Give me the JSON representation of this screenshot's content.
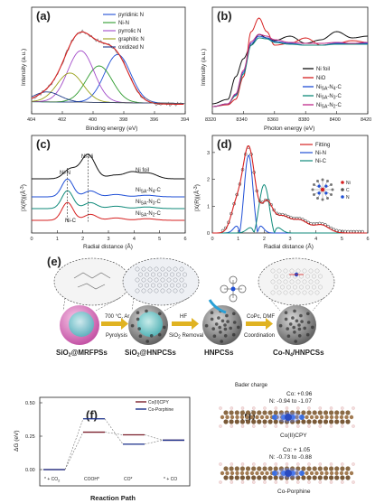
{
  "panel_a": {
    "label": "(a)",
    "ylabel": "Intensity (a.u.)",
    "xlabel": "Binding energy (eV)",
    "xticks": [
      "404",
      "402",
      "400",
      "398",
      "396",
      "394"
    ],
    "legend": [
      {
        "name": "pyridinic N",
        "color": "#1f4fd6"
      },
      {
        "name": "Ni-N",
        "color": "#2e9b2e"
      },
      {
        "name": "pyrrolic N",
        "color": "#a34bc9"
      },
      {
        "name": "graphitic N",
        "color": "#9aa21a"
      },
      {
        "name": "oxidized N",
        "color": "#1e3a8a"
      }
    ],
    "raw_color": "#777777",
    "fit_color": "#d62020"
  },
  "panel_b": {
    "label": "(b)",
    "ylabel": "Intensity (a.u.)",
    "xlabel": "Photon energy (eV)",
    "xticks": [
      "8320",
      "8340",
      "8360",
      "8380",
      "8400",
      "8420"
    ],
    "legend": [
      {
        "name": "Ni foil",
        "color": "#111111"
      },
      {
        "name": "NiO",
        "color": "#d62020"
      },
      {
        "name": "Ni",
        "sub": "SA",
        "tail": "-N",
        "sub2": "4",
        "end": "-C",
        "color": "#1f4fd6"
      },
      {
        "name": "Ni",
        "sub": "SA",
        "tail": "-N",
        "sub2": "3",
        "end": "-C",
        "color": "#0f8a7a"
      },
      {
        "name": "Ni",
        "sub": "SA",
        "tail": "-N",
        "sub2": "2",
        "end": "-C",
        "color": "#c02a8a"
      }
    ]
  },
  "panel_c": {
    "label": "(c)",
    "ylabel": "|X(R)|(Å",
    "ylabel_sup": "-3",
    "ylabel_end": ")",
    "xlabel": "Radial distance (Å)",
    "xticks": [
      "0",
      "1",
      "2",
      "3",
      "4",
      "5",
      "6"
    ],
    "annotations": {
      "ni_ni": "Ni-Ni",
      "ni_n": "Ni-N",
      "ni_c": "Ni-C",
      "ni_foil": "Ni foil"
    },
    "curves": [
      {
        "name": "Ni",
        "sub": "SA",
        "tail": "-N",
        "sub2": "4",
        "end": "-C"
      },
      {
        "name": "Ni",
        "sub": "SA",
        "tail": "-N",
        "sub2": "3",
        "end": "-C"
      },
      {
        "name": "Ni",
        "sub": "SA",
        "tail": "-N",
        "sub2": "2",
        "end": "-C"
      }
    ]
  },
  "panel_d": {
    "label": "(d)",
    "ylabel": "|X(R)|(Å",
    "ylabel_sup": "-3",
    "ylabel_end": ")",
    "xlabel": "Radial distance (Å)",
    "xticks": [
      "0",
      "1",
      "2",
      "3",
      "4",
      "5",
      "6"
    ],
    "yticks": [
      "0",
      "1",
      "2",
      "3"
    ],
    "legend": [
      {
        "name": "Fitting",
        "color": "#d62020"
      },
      {
        "name": "Ni-N",
        "color": "#1f4fd6"
      },
      {
        "name": "Ni-C",
        "color": "#0f8a7a"
      }
    ],
    "atoms": [
      {
        "name": "Ni",
        "color": "#d62020"
      },
      {
        "name": "C",
        "color": "#555555"
      },
      {
        "name": "N",
        "color": "#1f4fd6"
      }
    ]
  },
  "panel_e": {
    "label": "(e)",
    "step1": {
      "line1": "700 °C, Ar",
      "line2": "Pyrolysis"
    },
    "step2": {
      "line1": "HF",
      "line2": "SiO",
      "line2_sub": "2",
      "line2_end": " Removal"
    },
    "step3": {
      "line1": "CoPc, DMF",
      "line2": "Coordination"
    },
    "names": [
      {
        "text": "SiO",
        "sub": "2",
        "end": "@MRFPSs"
      },
      {
        "text": "SiO",
        "sub": "2",
        "end": "@HNPCSs"
      },
      {
        "text": "HNPCSs",
        "sub": "",
        "end": ""
      },
      {
        "text": "Co-N",
        "sub": "4",
        "end": "/HNPCSs"
      }
    ]
  },
  "panel_f": {
    "label": "(f)",
    "ylabel": "ΔG (eV)",
    "xlabel": "Reaction Path",
    "yticks": [
      "0.50",
      "0.25",
      "0.00"
    ],
    "steps": [
      "* + CO",
      "COOH*",
      "CO*",
      "* + CO"
    ],
    "step_subs": [
      "2",
      "",
      "",
      ""
    ],
    "legend": [
      {
        "name": "Co(II)CPY",
        "color": "#7a1f2b"
      },
      {
        "name": "Co-Porphine",
        "color": "#1a2f8a"
      }
    ]
  },
  "panel_g": {
    "label": "(g)",
    "title": "Bader charge",
    "mol1": {
      "co": "Co: +0.96",
      "n": "N: -0.94 to -1.07",
      "name": "Co(II)CPY"
    },
    "mol2": {
      "co": "Co: + 1.05",
      "n": "N: -0.73 to -0.88",
      "name": "Co-Porphine"
    }
  },
  "chart_data": [
    {
      "type": "line",
      "panel": "a",
      "xlabel": "Binding energy (eV)",
      "ylabel": "Intensity (a.u.)",
      "xlim": [
        404,
        394
      ],
      "series": [
        {
          "name": "pyridinic N",
          "peak_x": 398.4,
          "peak_y": 0.58
        },
        {
          "name": "Ni-N",
          "peak_x": 399.6,
          "peak_y": 0.44
        },
        {
          "name": "pyrrolic N",
          "peak_x": 400.8,
          "peak_y": 0.62
        },
        {
          "name": "graphitic N",
          "peak_x": 401.5,
          "peak_y": 0.35
        },
        {
          "name": "oxidized N",
          "peak_x": 403.0,
          "peak_y": 0.12
        }
      ]
    },
    {
      "type": "line",
      "panel": "b",
      "xlabel": "Photon energy (eV)",
      "ylabel": "Intensity (a.u.)",
      "xlim": [
        8320,
        8420
      ],
      "series": [
        {
          "name": "Ni foil",
          "x": [
            8320,
            8330,
            8335,
            8340,
            8345,
            8350,
            8355,
            8360,
            8370,
            8380,
            8390,
            8400,
            8410,
            8420
          ],
          "y": [
            0.05,
            0.1,
            0.35,
            0.55,
            0.7,
            0.82,
            0.78,
            0.75,
            0.8,
            0.72,
            0.76,
            0.85,
            0.78,
            0.8
          ]
        },
        {
          "name": "NiO",
          "x": [
            8320,
            8330,
            8335,
            8340,
            8345,
            8350,
            8355,
            8360,
            8370,
            8380,
            8390,
            8400,
            8410,
            8420
          ],
          "y": [
            0.02,
            0.04,
            0.1,
            0.35,
            0.85,
            1.0,
            0.85,
            0.7,
            0.72,
            0.78,
            0.7,
            0.72,
            0.75,
            0.73
          ]
        },
        {
          "name": "NiSA-N4-C",
          "x": [
            8320,
            8330,
            8335,
            8340,
            8345,
            8350,
            8355,
            8360,
            8370,
            8380,
            8390,
            8400,
            8410,
            8420
          ],
          "y": [
            0.02,
            0.05,
            0.15,
            0.4,
            0.72,
            0.8,
            0.78,
            0.74,
            0.72,
            0.7,
            0.7,
            0.72,
            0.72,
            0.72
          ]
        },
        {
          "name": "NiSA-N3-C",
          "x": [
            8320,
            8330,
            8335,
            8340,
            8345,
            8350,
            8355,
            8360,
            8370,
            8380,
            8390,
            8400,
            8410,
            8420
          ],
          "y": [
            0.02,
            0.05,
            0.14,
            0.38,
            0.7,
            0.78,
            0.77,
            0.73,
            0.71,
            0.7,
            0.7,
            0.71,
            0.71,
            0.71
          ]
        },
        {
          "name": "NiSA-N2-C",
          "x": [
            8320,
            8330,
            8335,
            8340,
            8345,
            8350,
            8355,
            8360,
            8370,
            8380,
            8390,
            8400,
            8410,
            8420
          ],
          "y": [
            0.02,
            0.05,
            0.16,
            0.42,
            0.74,
            0.82,
            0.8,
            0.76,
            0.73,
            0.72,
            0.72,
            0.73,
            0.72,
            0.73
          ]
        }
      ]
    },
    {
      "type": "line",
      "panel": "c",
      "xlabel": "Radial distance (Å)",
      "ylabel": "|X(R)|(Å-3)",
      "xlim": [
        0,
        6
      ],
      "series": [
        {
          "name": "Ni foil",
          "peak_x": 2.2
        },
        {
          "name": "NiSA-N4-C",
          "peak_x": 1.4
        },
        {
          "name": "NiSA-N3-C",
          "peak_x": 1.4
        },
        {
          "name": "NiSA-N2-C",
          "peak_x": 1.4
        }
      ]
    },
    {
      "type": "line",
      "panel": "d",
      "xlabel": "Radial distance (Å)",
      "ylabel": "|X(R)|(Å-3)",
      "xlim": [
        0,
        6
      ],
      "ylim": [
        0,
        3.5
      ],
      "series": [
        {
          "name": "Fitting",
          "peak_x": 1.4,
          "peak_y": 3.2
        },
        {
          "name": "Ni-N",
          "peak_x": 1.4,
          "peak_y": 2.9
        },
        {
          "name": "Ni-C",
          "peak_x": 2.0,
          "peak_y": 1.8
        }
      ]
    },
    {
      "type": "line",
      "panel": "f",
      "xlabel": "Reaction Path",
      "ylabel": "ΔG (eV)",
      "ylim": [
        0.0,
        0.5
      ],
      "categories": [
        "* + CO2",
        "COOH*",
        "CO*",
        "* + CO"
      ],
      "series": [
        {
          "name": "Co(II)CPY",
          "values": [
            0.0,
            0.28,
            0.26,
            0.22
          ]
        },
        {
          "name": "Co-Porphine",
          "values": [
            0.0,
            0.38,
            0.19,
            0.22
          ]
        }
      ]
    }
  ]
}
